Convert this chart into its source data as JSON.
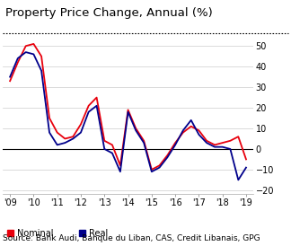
{
  "title": "Property Price Change, Annual (%)",
  "source": "Source: Bank Audi, Banque du Liban, CAS, Credit Libanais, GPG",
  "ylim": [
    -22,
    55
  ],
  "yticks": [
    -20,
    -10,
    0,
    10,
    20,
    30,
    40,
    50
  ],
  "nominal_x": [
    2009.0,
    2009.33,
    2009.67,
    2010.0,
    2010.33,
    2010.67,
    2011.0,
    2011.33,
    2011.67,
    2012.0,
    2012.33,
    2012.67,
    2013.0,
    2013.33,
    2013.67,
    2014.0,
    2014.33,
    2014.67,
    2015.0,
    2015.33,
    2015.67,
    2016.0,
    2016.33,
    2016.67,
    2017.0,
    2017.33,
    2017.67,
    2018.0,
    2018.33,
    2018.67,
    2019.0
  ],
  "nominal_y": [
    33,
    42,
    50,
    51,
    45,
    15,
    8,
    5,
    6,
    12,
    21,
    25,
    4,
    2,
    -8,
    19,
    10,
    4,
    -10,
    -8,
    -3,
    3,
    8,
    11,
    9,
    4,
    2,
    3,
    4,
    6,
    -5
  ],
  "real_x": [
    2009.0,
    2009.33,
    2009.67,
    2010.0,
    2010.33,
    2010.67,
    2011.0,
    2011.33,
    2011.67,
    2012.0,
    2012.33,
    2012.67,
    2013.0,
    2013.33,
    2013.67,
    2014.0,
    2014.33,
    2014.67,
    2015.0,
    2015.33,
    2015.67,
    2016.0,
    2016.33,
    2016.67,
    2017.0,
    2017.33,
    2017.67,
    2018.0,
    2018.33,
    2018.67,
    2019.0
  ],
  "real_y": [
    35,
    44,
    47,
    46,
    38,
    8,
    2,
    3,
    5,
    8,
    18,
    21,
    0,
    -2,
    -11,
    18,
    9,
    3,
    -11,
    -9,
    -4,
    2,
    9,
    14,
    7,
    3,
    1,
    1,
    0,
    -15,
    -9
  ],
  "nominal_color": "#e8000d",
  "real_color": "#00008b",
  "legend_nominal": "Nominal",
  "legend_real": "Real",
  "bg_color": "#ffffff",
  "grid_color": "#cccccc",
  "title_fontsize": 9.5,
  "label_fontsize": 7,
  "source_fontsize": 6.5
}
